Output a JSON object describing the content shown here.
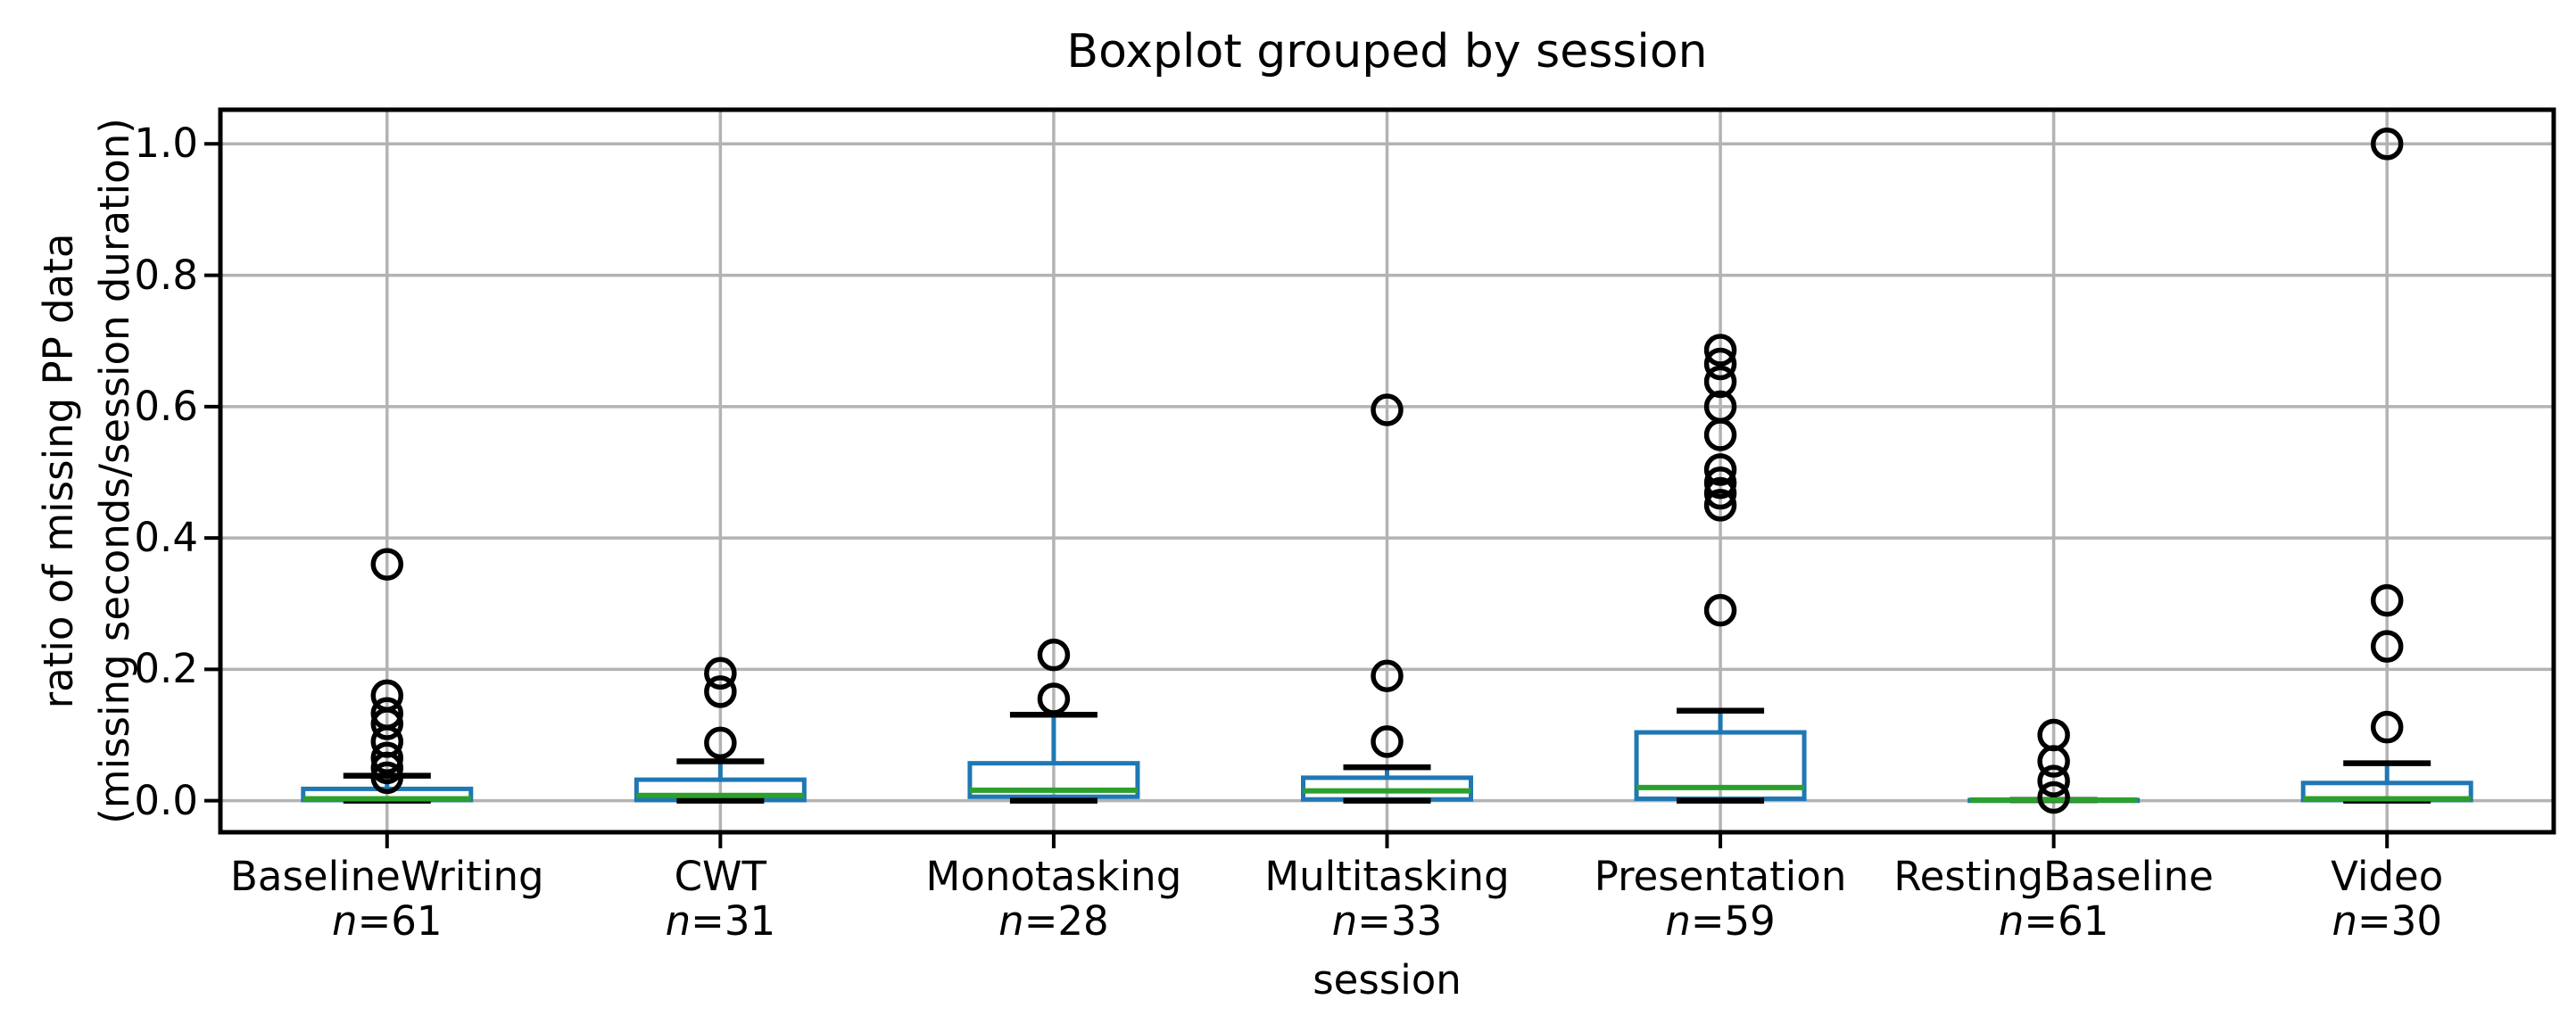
{
  "chart_data": {
    "type": "boxplot",
    "title": "Boxplot grouped by session",
    "xlabel": "session",
    "ylabel_lines": [
      "ratio of missing PP data",
      "(missing seconds/session duration)"
    ],
    "n_symbol": "n",
    "yticks": [
      "0.0",
      "0.2",
      "0.4",
      "0.6",
      "0.8",
      "1.0"
    ],
    "ytick_values": [
      0.0,
      0.2,
      0.4,
      0.6,
      0.8,
      1.0
    ],
    "ylim": [
      -0.048,
      1.052
    ],
    "grid": true,
    "legend": "none",
    "colors": {
      "box": "#1f77b4",
      "median": "#2ca02c",
      "whisker": "#1f77b4",
      "cap": "#000000",
      "outlier": "#000000",
      "gridline": "#b3b3b3",
      "frame": "#000000"
    },
    "categories": [
      {
        "label": "BaselineWriting",
        "n": 61,
        "q1": 0.001,
        "median": 0.003,
        "q3": 0.018,
        "whisker_low": 0.0,
        "whisker_high": 0.038,
        "outliers": [
          0.36,
          0.16,
          0.133,
          0.117,
          0.09,
          0.065,
          0.05,
          0.035
        ]
      },
      {
        "label": "CWT",
        "n": 31,
        "q1": 0.001,
        "median": 0.008,
        "q3": 0.032,
        "whisker_low": 0.0,
        "whisker_high": 0.06,
        "outliers": [
          0.194,
          0.166,
          0.088
        ]
      },
      {
        "label": "Monotasking",
        "n": 28,
        "q1": 0.006,
        "median": 0.016,
        "q3": 0.057,
        "whisker_low": 0.0,
        "whisker_high": 0.131,
        "outliers": [
          0.222,
          0.155
        ]
      },
      {
        "label": "Multitasking",
        "n": 33,
        "q1": 0.002,
        "median": 0.015,
        "q3": 0.035,
        "whisker_low": 0.0,
        "whisker_high": 0.051,
        "outliers": [
          0.595,
          0.19,
          0.09
        ]
      },
      {
        "label": "Presentation",
        "n": 59,
        "q1": 0.003,
        "median": 0.02,
        "q3": 0.104,
        "whisker_low": 0.0,
        "whisker_high": 0.137,
        "outliers": [
          0.686,
          0.665,
          0.638,
          0.6,
          0.557,
          0.504,
          0.484,
          0.468,
          0.45,
          0.29
        ]
      },
      {
        "label": "RestingBaseline",
        "n": 61,
        "q1": 0.001,
        "median": 0.001,
        "q3": 0.001,
        "whisker_low": 0.001,
        "whisker_high": 0.001,
        "outliers": [
          0.1,
          0.06,
          0.03,
          0.005
        ]
      },
      {
        "label": "Video",
        "n": 30,
        "q1": 0.001,
        "median": 0.003,
        "q3": 0.027,
        "whisker_low": 0.0,
        "whisker_high": 0.057,
        "outliers": [
          1.0,
          0.305,
          0.235,
          0.112
        ]
      }
    ]
  }
}
